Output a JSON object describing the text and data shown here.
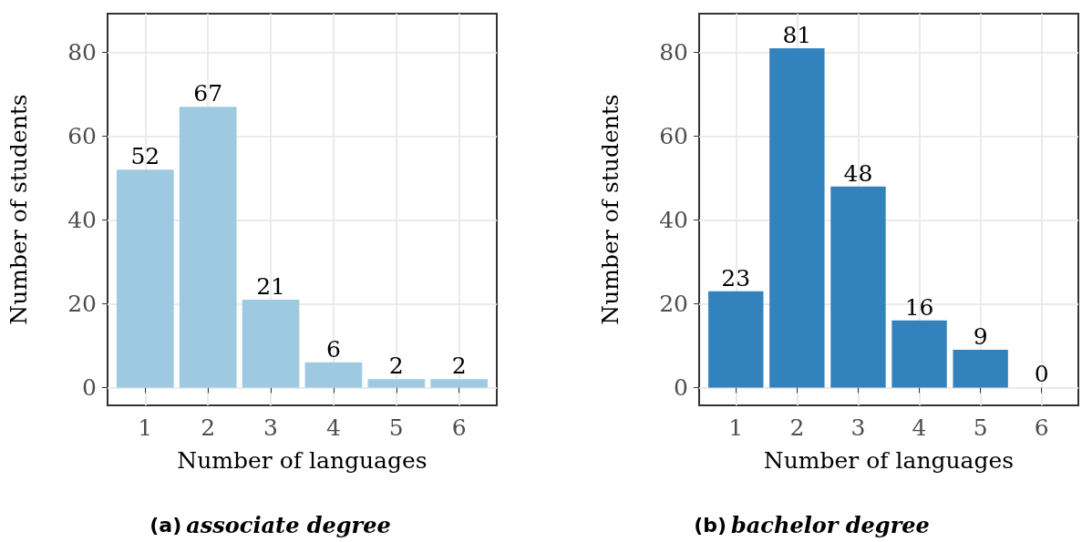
{
  "chart_data": [
    {
      "type": "bar",
      "title": "(a) associate degree",
      "xlabel": "Number of languages",
      "ylabel": "Number of students",
      "categories": [
        "1",
        "2",
        "3",
        "4",
        "5",
        "6"
      ],
      "values": [
        52,
        67,
        21,
        6,
        2,
        2
      ],
      "color": "#9ecae1",
      "ylim": [
        -4.25,
        89.25
      ],
      "yticks": [
        0,
        20,
        40,
        60,
        80
      ],
      "grid": true,
      "data_labels": true
    },
    {
      "type": "bar",
      "title": "(b) bachelor degree",
      "xlabel": "Number of languages",
      "ylabel": "Number of students",
      "categories": [
        "1",
        "2",
        "3",
        "4",
        "5",
        "6"
      ],
      "values": [
        23,
        81,
        48,
        16,
        9,
        0
      ],
      "color": "#3182bd",
      "ylim": [
        -4.25,
        89.25
      ],
      "yticks": [
        0,
        20,
        40,
        60,
        80
      ],
      "grid": true,
      "data_labels": true
    }
  ]
}
